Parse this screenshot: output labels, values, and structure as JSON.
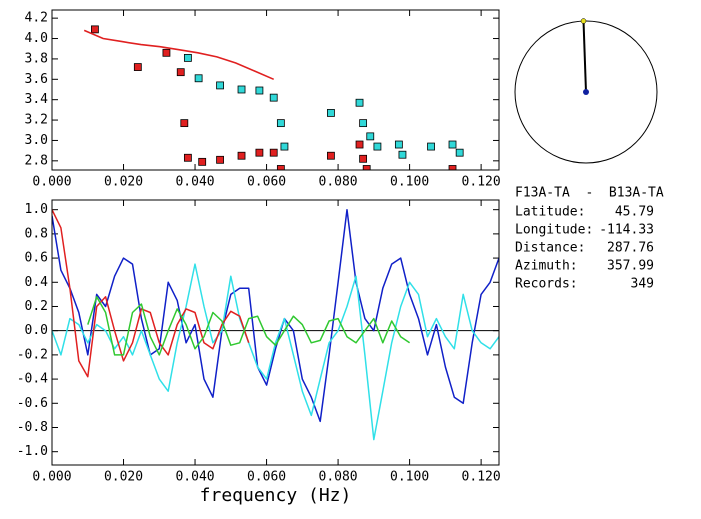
{
  "chart_data": [
    {
      "type": "scatter",
      "xlim": [
        0,
        0.125
      ],
      "ylim": [
        2.71,
        4.28
      ],
      "xticks": [
        {
          "value": 0,
          "label": "0.000"
        },
        {
          "value": 0.02,
          "label": "0.020"
        },
        {
          "value": 0.04,
          "label": "0.040"
        },
        {
          "value": 0.06,
          "label": "0.060"
        },
        {
          "value": 0.08,
          "label": "0.080"
        },
        {
          "value": 0.1,
          "label": "0.100"
        },
        {
          "value": 0.12,
          "label": "0.120"
        }
      ],
      "yticks": [
        2.8,
        {
          "value": 3,
          "label": "3.0"
        },
        3.2,
        3.4,
        3.6,
        3.8,
        {
          "value": 4,
          "label": "4.0"
        },
        4.2
      ],
      "series": [
        {
          "color": "#e02020",
          "style": "square",
          "x": [
            0.012,
            0.024,
            0.032,
            0.036,
            0.037,
            0.038,
            0.042,
            0.047,
            0.053,
            0.058,
            0.062,
            0.064,
            0.078,
            0.086,
            0.087,
            0.088,
            0.112
          ],
          "values": [
            4.09,
            3.72,
            3.86,
            3.67,
            3.17,
            2.83,
            2.79,
            2.81,
            2.85,
            2.88,
            2.88,
            2.72,
            2.85,
            2.96,
            2.82,
            2.72,
            2.72
          ]
        },
        {
          "color": "#30d8d8",
          "style": "square",
          "x": [
            0.038,
            0.041,
            0.047,
            0.053,
            0.058,
            0.062,
            0.064,
            0.065,
            0.078,
            0.086,
            0.087,
            0.089,
            0.091,
            0.097,
            0.098,
            0.106,
            0.112,
            0.114
          ],
          "values": [
            3.81,
            3.61,
            3.54,
            3.5,
            3.49,
            3.42,
            3.17,
            2.94,
            3.27,
            3.37,
            3.17,
            3.04,
            2.94,
            2.96,
            2.86,
            2.94,
            2.96,
            2.88
          ]
        },
        {
          "color": "#e02020",
          "style": "line",
          "x": [
            0.009,
            0.0143,
            0.0196,
            0.0249,
            0.0302,
            0.0355,
            0.0408,
            0.0461,
            0.0514,
            0.0567,
            0.062
          ],
          "values": [
            4.08,
            4.0,
            3.97,
            3.94,
            3.92,
            3.89,
            3.86,
            3.82,
            3.76,
            3.68,
            3.6
          ]
        }
      ]
    },
    {
      "type": "line",
      "x_label": "frequency (Hz)",
      "xlim": [
        0,
        0.125
      ],
      "ylim": [
        -1.11,
        1.08
      ],
      "hline": 0,
      "xticks": [
        {
          "value": 0,
          "label": "0.000"
        },
        {
          "value": 0.02,
          "label": "0.020"
        },
        {
          "value": 0.04,
          "label": "0.040"
        },
        {
          "value": 0.06,
          "label": "0.060"
        },
        {
          "value": 0.08,
          "label": "0.080"
        },
        {
          "value": 0.1,
          "label": "0.100"
        },
        {
          "value": 0.12,
          "label": "0.120"
        }
      ],
      "yticks": [
        {
          "value": -1,
          "label": "-1.0"
        },
        -0.8,
        -0.6,
        -0.4,
        -0.2,
        {
          "value": 0,
          "label": "0.0"
        },
        0.2,
        0.4,
        0.6,
        0.8,
        {
          "value": 1,
          "label": "1.0"
        }
      ],
      "x": [
        0,
        0.0025,
        0.005,
        0.0075,
        0.01,
        0.0125,
        0.015,
        0.0175,
        0.02,
        0.0225,
        0.025,
        0.0275,
        0.03,
        0.0325,
        0.035,
        0.0375,
        0.04,
        0.0425,
        0.045,
        0.0475,
        0.05,
        0.0525,
        0.055,
        0.0575,
        0.06,
        0.0625,
        0.065,
        0.0675,
        0.07,
        0.0725,
        0.075,
        0.0775,
        0.08,
        0.0825,
        0.085,
        0.0875,
        0.09,
        0.0925,
        0.095,
        0.0975,
        0.1,
        0.1025,
        0.105,
        0.1075,
        0.11,
        0.1125,
        0.115,
        0.1175,
        0.12,
        0.1225,
        0.125
      ],
      "series": [
        {
          "color": "#1020c8",
          "values": [
            0.95,
            0.5,
            0.35,
            0.15,
            -0.2,
            0.3,
            0.2,
            0.45,
            0.6,
            0.55,
            0.1,
            -0.2,
            -0.15,
            0.4,
            0.25,
            -0.1,
            0.05,
            -0.4,
            -0.55,
            0.0,
            0.3,
            0.35,
            0.35,
            -0.3,
            -0.45,
            -0.15,
            0.1,
            0.0,
            -0.4,
            -0.55,
            -0.75,
            -0.2,
            0.4,
            1.0,
            0.4,
            0.1,
            0.0,
            0.35,
            0.55,
            0.6,
            0.3,
            0.1,
            -0.2,
            0.05,
            -0.3,
            -0.55,
            -0.6,
            -0.1,
            0.3,
            0.4,
            0.6
          ]
        },
        {
          "color": "#30e0e8",
          "values": [
            0.0,
            -0.2,
            0.1,
            0.05,
            -0.1,
            0.05,
            0.0,
            -0.15,
            -0.05,
            -0.2,
            0.0,
            -0.2,
            -0.4,
            -0.5,
            -0.1,
            0.2,
            0.55,
            0.2,
            -0.1,
            0.0,
            0.45,
            0.1,
            -0.1,
            -0.3,
            -0.4,
            -0.1,
            0.1,
            -0.2,
            -0.5,
            -0.7,
            -0.4,
            -0.1,
            0.0,
            0.2,
            0.45,
            -0.2,
            -0.9,
            -0.5,
            -0.1,
            0.2,
            0.4,
            0.3,
            -0.05,
            0.1,
            -0.05,
            -0.15,
            0.3,
            0.0,
            -0.1,
            -0.15,
            -0.05
          ]
        },
        {
          "color": "#e02020",
          "values": [
            1.0,
            0.85,
            0.35,
            -0.25,
            -0.38,
            0.2,
            0.28,
            0.0,
            -0.25,
            -0.1,
            0.18,
            0.15,
            -0.1,
            -0.2,
            0.05,
            0.18,
            0.15,
            -0.1,
            -0.15,
            0.05,
            0.16,
            0.12,
            -0.1,
            null,
            null,
            null,
            null,
            null,
            null,
            null,
            null,
            null,
            null,
            null,
            null,
            null,
            null,
            null,
            null,
            null,
            null,
            null,
            null,
            null,
            null,
            null,
            null,
            null,
            null,
            null,
            null
          ]
        },
        {
          "color": "#30c830",
          "values": [
            null,
            null,
            null,
            null,
            0.05,
            0.28,
            0.15,
            -0.2,
            -0.2,
            0.15,
            0.22,
            -0.05,
            -0.2,
            0.0,
            0.18,
            0.05,
            -0.15,
            -0.05,
            0.15,
            0.08,
            -0.12,
            -0.1,
            0.1,
            0.12,
            -0.05,
            -0.12,
            0.0,
            0.12,
            0.05,
            -0.1,
            -0.08,
            0.08,
            0.1,
            -0.05,
            -0.1,
            0.0,
            0.1,
            -0.1,
            0.08,
            -0.05,
            -0.1,
            null,
            null,
            null,
            null,
            null,
            null,
            null,
            null,
            null,
            null
          ]
        }
      ]
    }
  ],
  "station_info": {
    "title": "F13A-TA  -  B13A-TA",
    "fields": [
      {
        "label": "Latitude:",
        "value": 45.79
      },
      {
        "label": "Longitude:",
        "value": -114.33
      },
      {
        "label": "Distance:",
        "value": 287.76
      },
      {
        "label": "Azimuth:",
        "value": 357.99
      },
      {
        "label": "Records:",
        "value": 349
      }
    ]
  }
}
